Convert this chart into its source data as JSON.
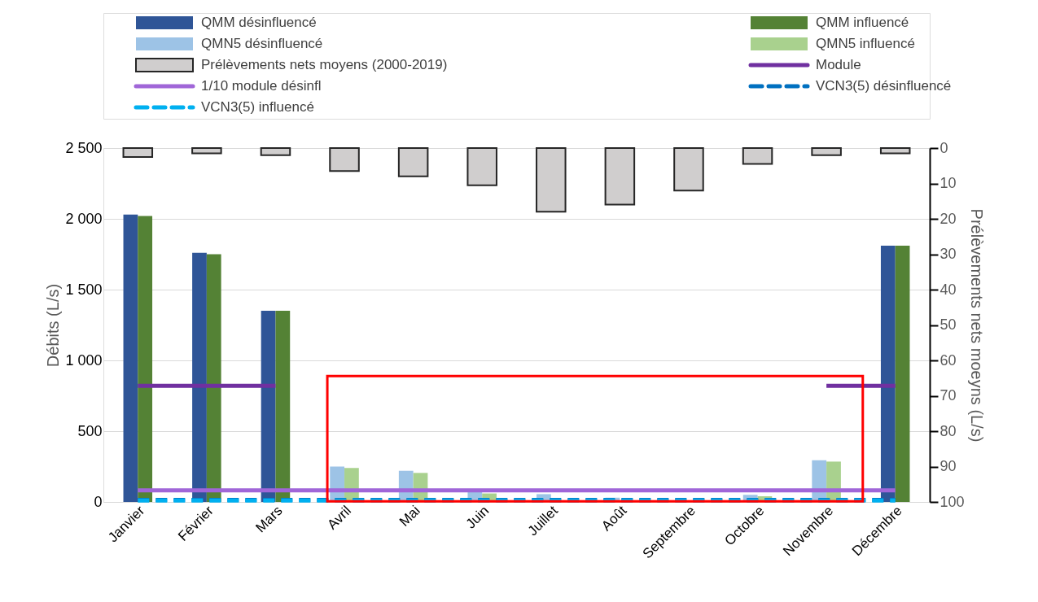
{
  "chart_data": {
    "type": "bar",
    "categories": [
      "Janvier",
      "Février",
      "Mars",
      "Avril",
      "Mai",
      "Juin",
      "Juillet",
      "Août",
      "Septembre",
      "Octobre",
      "Novembre",
      "Décembre"
    ],
    "series": [
      {
        "name": "QMM désinfluencé",
        "color": "#2f5597",
        "values": [
          2030,
          1760,
          1350,
          null,
          null,
          null,
          null,
          null,
          null,
          null,
          null,
          1810
        ]
      },
      {
        "name": "QMM influencé",
        "color": "#548235",
        "values": [
          2020,
          1750,
          1350,
          null,
          null,
          null,
          null,
          null,
          null,
          null,
          null,
          1810
        ]
      },
      {
        "name": "QMN5 désinfluencé",
        "color": "#9dc3e6",
        "values": [
          null,
          null,
          null,
          250,
          220,
          70,
          55,
          30,
          null,
          50,
          295,
          null
        ]
      },
      {
        "name": "QMN5 influencé",
        "color": "#a9d18e",
        "values": [
          null,
          null,
          null,
          240,
          205,
          60,
          null,
          null,
          null,
          40,
          285,
          null
        ]
      },
      {
        "name": "Prélèvements nets moyens (2000-2019)",
        "axis": "y2",
        "color": "#d0cece",
        "values": [
          2.5,
          1.5,
          2,
          6.5,
          8,
          10.5,
          18,
          16,
          12,
          4.5,
          2,
          1.5
        ]
      },
      {
        "name": "Module",
        "type": "line",
        "color": "#7030a0",
        "line_style": "solid",
        "values": [
          820,
          820,
          820,
          null,
          null,
          null,
          null,
          null,
          null,
          null,
          820,
          820
        ]
      },
      {
        "name": "1/10 module désinfl",
        "type": "line",
        "color": "#a066d8",
        "line_style": "solid",
        "values": [
          82,
          82,
          82,
          82,
          82,
          82,
          82,
          82,
          82,
          82,
          82,
          82
        ]
      },
      {
        "name": "VCN3(5) désinfluencé",
        "type": "line",
        "color": "#0070c0",
        "line_style": "dashed",
        "values": [
          15,
          15,
          15,
          15,
          15,
          15,
          15,
          15,
          15,
          15,
          15,
          15
        ]
      },
      {
        "name": "VCN3(5) influencé",
        "type": "line",
        "color": "#00b0f0",
        "line_style": "dashed",
        "values": [
          10,
          10,
          10,
          10,
          10,
          10,
          10,
          10,
          10,
          10,
          10,
          10
        ]
      }
    ],
    "ylabel": "Débits (L/s)",
    "y2label": "Prélèvements nets moeyns (L/s)",
    "ylim": [
      0,
      2500
    ],
    "yticks": [
      0,
      500,
      {
        "value": 1000,
        "label": "1 000"
      },
      {
        "value": 1500,
        "label": "1 500"
      },
      {
        "value": 2000,
        "label": "2 000"
      },
      {
        "value": 2500,
        "label": "2 500"
      }
    ],
    "y2lim": [
      100,
      0
    ],
    "y2ticks": [
      0,
      10,
      20,
      30,
      40,
      50,
      60,
      70,
      80,
      90,
      100
    ],
    "grid": "y",
    "legend": "top"
  }
}
